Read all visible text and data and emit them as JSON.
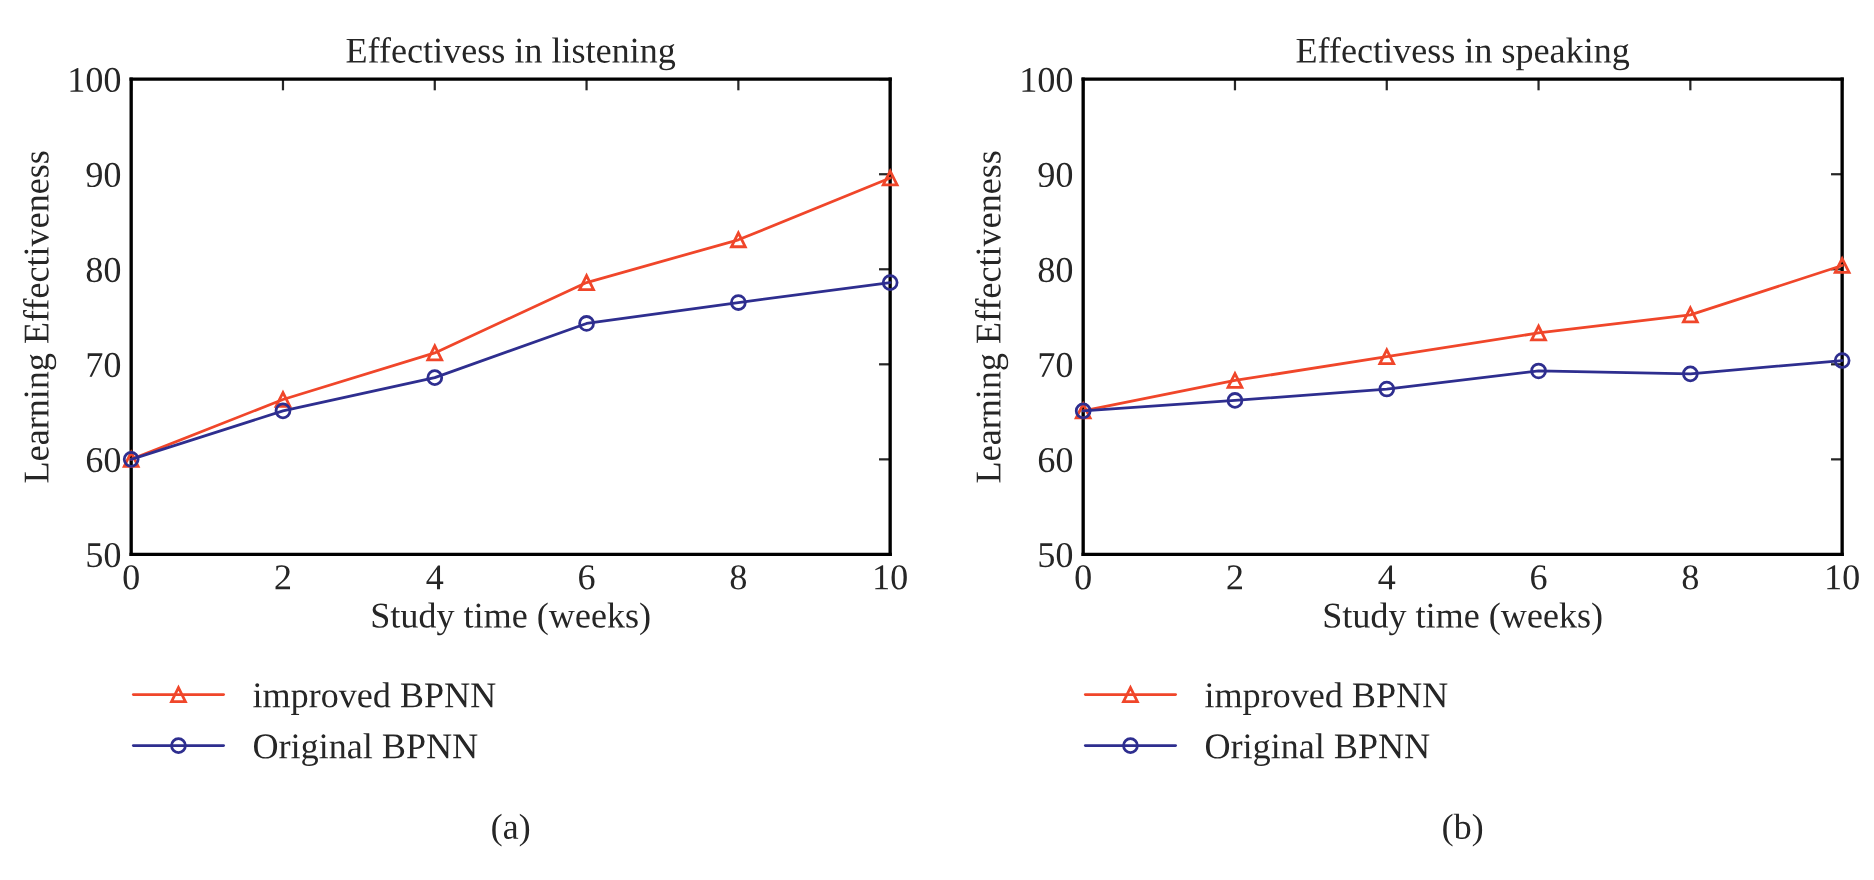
{
  "chart_data": [
    {
      "type": "line",
      "title": "Effectivess in listening",
      "xlabel": "Study time (weeks)",
      "ylabel": "Learning Effectiveness",
      "x": [
        0,
        2,
        4,
        6,
        8,
        10
      ],
      "xlim": [
        0,
        10
      ],
      "xticks": [
        0,
        2,
        4,
        6,
        8,
        10
      ],
      "ylim": [
        50,
        100
      ],
      "yticks": [
        50,
        60,
        70,
        80,
        90,
        100
      ],
      "grid": false,
      "legend": "bottom",
      "annotations": [
        "(a)"
      ],
      "series": [
        {
          "name": "improved BPNN",
          "color": "#f0462a",
          "marker": "triangle",
          "values": [
            60,
            66.3,
            71.2,
            78.6,
            83.1,
            89.6
          ]
        },
        {
          "name": "Original BPNN",
          "color": "#2e2e8f",
          "marker": "circle",
          "values": [
            60,
            65.1,
            68.6,
            74.3,
            76.5,
            78.6
          ]
        }
      ]
    },
    {
      "type": "line",
      "title": "Effectivess in speaking",
      "xlabel": "Study time (weeks)",
      "ylabel": "Learning Effectiveness",
      "x": [
        0,
        2,
        4,
        6,
        8,
        10
      ],
      "xlim": [
        0,
        10
      ],
      "xticks": [
        0,
        2,
        4,
        6,
        8,
        10
      ],
      "ylim": [
        50,
        100
      ],
      "yticks": [
        50,
        60,
        70,
        80,
        90,
        100
      ],
      "grid": false,
      "legend": "bottom",
      "annotations": [
        "(b)"
      ],
      "series": [
        {
          "name": "improved BPNN",
          "color": "#f0462a",
          "marker": "triangle",
          "values": [
            65.1,
            68.3,
            70.8,
            73.3,
            75.2,
            80.4
          ]
        },
        {
          "name": "Original BPNN",
          "color": "#2e2e8f",
          "marker": "circle",
          "values": [
            65.1,
            66.2,
            67.4,
            69.3,
            69.0,
            70.4
          ]
        }
      ]
    }
  ]
}
